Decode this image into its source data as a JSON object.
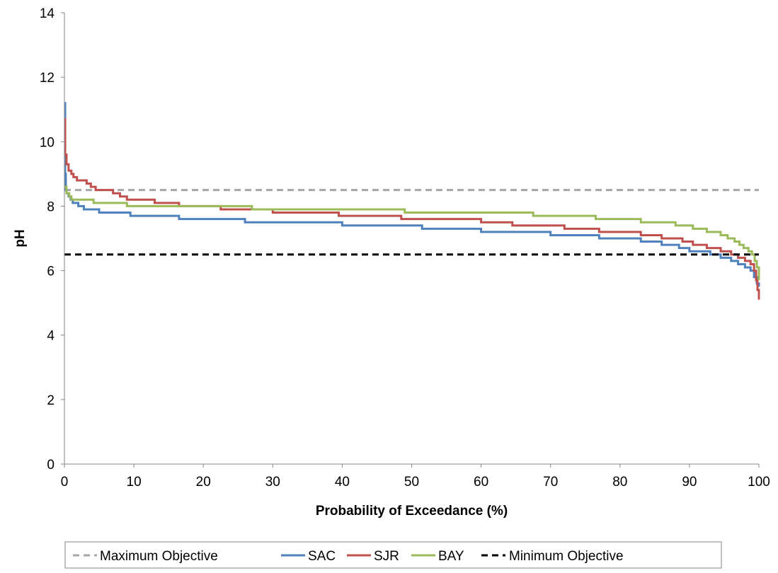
{
  "chart_data": {
    "type": "line",
    "title": "",
    "xlabel": "Probability of Exceedance (%)",
    "ylabel": "pH",
    "xlim": [
      0,
      100
    ],
    "ylim": [
      0,
      14
    ],
    "x_ticks": [
      "0",
      "10",
      "20",
      "30",
      "40",
      "50",
      "60",
      "70",
      "80",
      "90",
      "100"
    ],
    "y_ticks": [
      "0",
      "2",
      "4",
      "6",
      "8",
      "10",
      "12",
      "14"
    ],
    "grid": false,
    "legend_position": "bottom",
    "series": [
      {
        "name": "Maximum Objective",
        "color": "#a6a6a6",
        "dash": "dashed",
        "step": false,
        "points": [
          [
            0,
            8.5
          ],
          [
            100,
            8.5
          ]
        ]
      },
      {
        "name": "SAC",
        "color": "#4f81bd",
        "dash": "solid",
        "step": true,
        "points": [
          [
            0,
            11.2
          ],
          [
            0.1,
            9.0
          ],
          [
            0.2,
            8.5
          ],
          [
            0.3,
            8.4
          ],
          [
            0.6,
            8.3
          ],
          [
            0.9,
            8.2
          ],
          [
            1.2,
            8.1
          ],
          [
            2.0,
            8.0
          ],
          [
            2.8,
            7.9
          ],
          [
            5.0,
            7.8
          ],
          [
            9.5,
            7.7
          ],
          [
            16.5,
            7.6
          ],
          [
            26.0,
            7.5
          ],
          [
            40.0,
            7.4
          ],
          [
            51.5,
            7.3
          ],
          [
            60.0,
            7.2
          ],
          [
            70.0,
            7.1
          ],
          [
            77.0,
            7.0
          ],
          [
            83.0,
            6.9
          ],
          [
            86.0,
            6.8
          ],
          [
            88.5,
            6.7
          ],
          [
            90.0,
            6.6
          ],
          [
            93.0,
            6.5
          ],
          [
            94.5,
            6.4
          ],
          [
            96.0,
            6.3
          ],
          [
            97.0,
            6.2
          ],
          [
            98.0,
            6.1
          ],
          [
            98.8,
            6.0
          ],
          [
            99.3,
            5.8
          ],
          [
            99.7,
            5.6
          ],
          [
            100,
            5.5
          ]
        ]
      },
      {
        "name": "SJR",
        "color": "#c0504d",
        "dash": "solid",
        "step": true,
        "points": [
          [
            0,
            10.7
          ],
          [
            0.1,
            9.6
          ],
          [
            0.3,
            9.3
          ],
          [
            0.6,
            9.1
          ],
          [
            1.0,
            9.0
          ],
          [
            1.3,
            8.9
          ],
          [
            1.8,
            8.8
          ],
          [
            3.2,
            8.7
          ],
          [
            3.8,
            8.6
          ],
          [
            4.5,
            8.5
          ],
          [
            7.0,
            8.4
          ],
          [
            8.0,
            8.3
          ],
          [
            9.0,
            8.2
          ],
          [
            13.0,
            8.1
          ],
          [
            16.5,
            8.0
          ],
          [
            22.5,
            7.9
          ],
          [
            30.0,
            7.8
          ],
          [
            39.5,
            7.7
          ],
          [
            48.5,
            7.6
          ],
          [
            60.0,
            7.5
          ],
          [
            64.5,
            7.4
          ],
          [
            72.0,
            7.3
          ],
          [
            77.0,
            7.2
          ],
          [
            83.0,
            7.1
          ],
          [
            86.0,
            7.0
          ],
          [
            89.0,
            6.9
          ],
          [
            90.5,
            6.8
          ],
          [
            92.5,
            6.7
          ],
          [
            94.5,
            6.6
          ],
          [
            96.0,
            6.5
          ],
          [
            97.0,
            6.4
          ],
          [
            98.0,
            6.3
          ],
          [
            98.8,
            6.2
          ],
          [
            99.3,
            6.0
          ],
          [
            99.6,
            5.7
          ],
          [
            99.8,
            5.4
          ],
          [
            100,
            5.1
          ]
        ]
      },
      {
        "name": "BAY",
        "color": "#9bbb59",
        "dash": "solid",
        "step": true,
        "points": [
          [
            0,
            8.6
          ],
          [
            0.3,
            8.4
          ],
          [
            0.7,
            8.3
          ],
          [
            1.0,
            8.2
          ],
          [
            4.2,
            8.1
          ],
          [
            9.0,
            8.0
          ],
          [
            27.0,
            7.9
          ],
          [
            49.0,
            7.8
          ],
          [
            67.5,
            7.7
          ],
          [
            76.5,
            7.6
          ],
          [
            83.0,
            7.5
          ],
          [
            88.0,
            7.4
          ],
          [
            90.5,
            7.3
          ],
          [
            92.5,
            7.2
          ],
          [
            94.5,
            7.1
          ],
          [
            95.5,
            7.0
          ],
          [
            96.5,
            6.9
          ],
          [
            97.2,
            6.8
          ],
          [
            97.8,
            6.7
          ],
          [
            98.5,
            6.6
          ],
          [
            99.0,
            6.5
          ],
          [
            99.4,
            6.3
          ],
          [
            99.7,
            6.1
          ],
          [
            100,
            5.7
          ]
        ]
      },
      {
        "name": "Minimum Objective",
        "color": "#000000",
        "dash": "dashed",
        "step": false,
        "points": [
          [
            0,
            6.5
          ],
          [
            100,
            6.5
          ]
        ]
      }
    ]
  }
}
